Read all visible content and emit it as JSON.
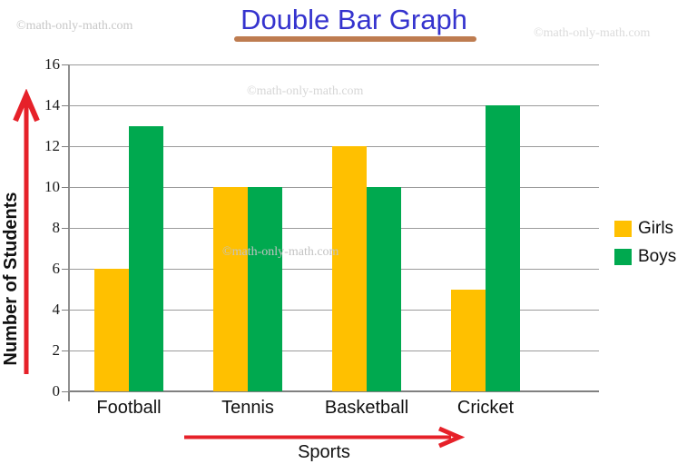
{
  "title": {
    "text": "Double Bar Graph"
  },
  "watermark": {
    "text": "©math-only-math.com"
  },
  "chart_data": {
    "type": "bar",
    "categories": [
      "Football",
      "Tennis",
      "Basketball",
      "Cricket"
    ],
    "series": [
      {
        "name": "Girls",
        "color": "#FFC000",
        "values": [
          6,
          10,
          12,
          5
        ]
      },
      {
        "name": "Boys",
        "color": "#00A94F",
        "values": [
          13,
          10,
          10,
          14
        ]
      }
    ],
    "title": "Double Bar Graph",
    "xlabel": "Sports",
    "ylabel": "Number of Students",
    "ylim": [
      0,
      16
    ],
    "ytick_step": 2,
    "grid": true,
    "legend_position": "right",
    "legend_entries": [
      "Girls",
      "Boys"
    ]
  },
  "colors": {
    "title": "#3533CE",
    "title_underline": "#BE7C50",
    "axis_arrow": "#E62129",
    "gridline": "#9B9B9B",
    "axis_line": "#808080",
    "girls_bar": "#FFC000",
    "boys_bar": "#00A94F",
    "watermark_gray": "#CDCDCD"
  }
}
